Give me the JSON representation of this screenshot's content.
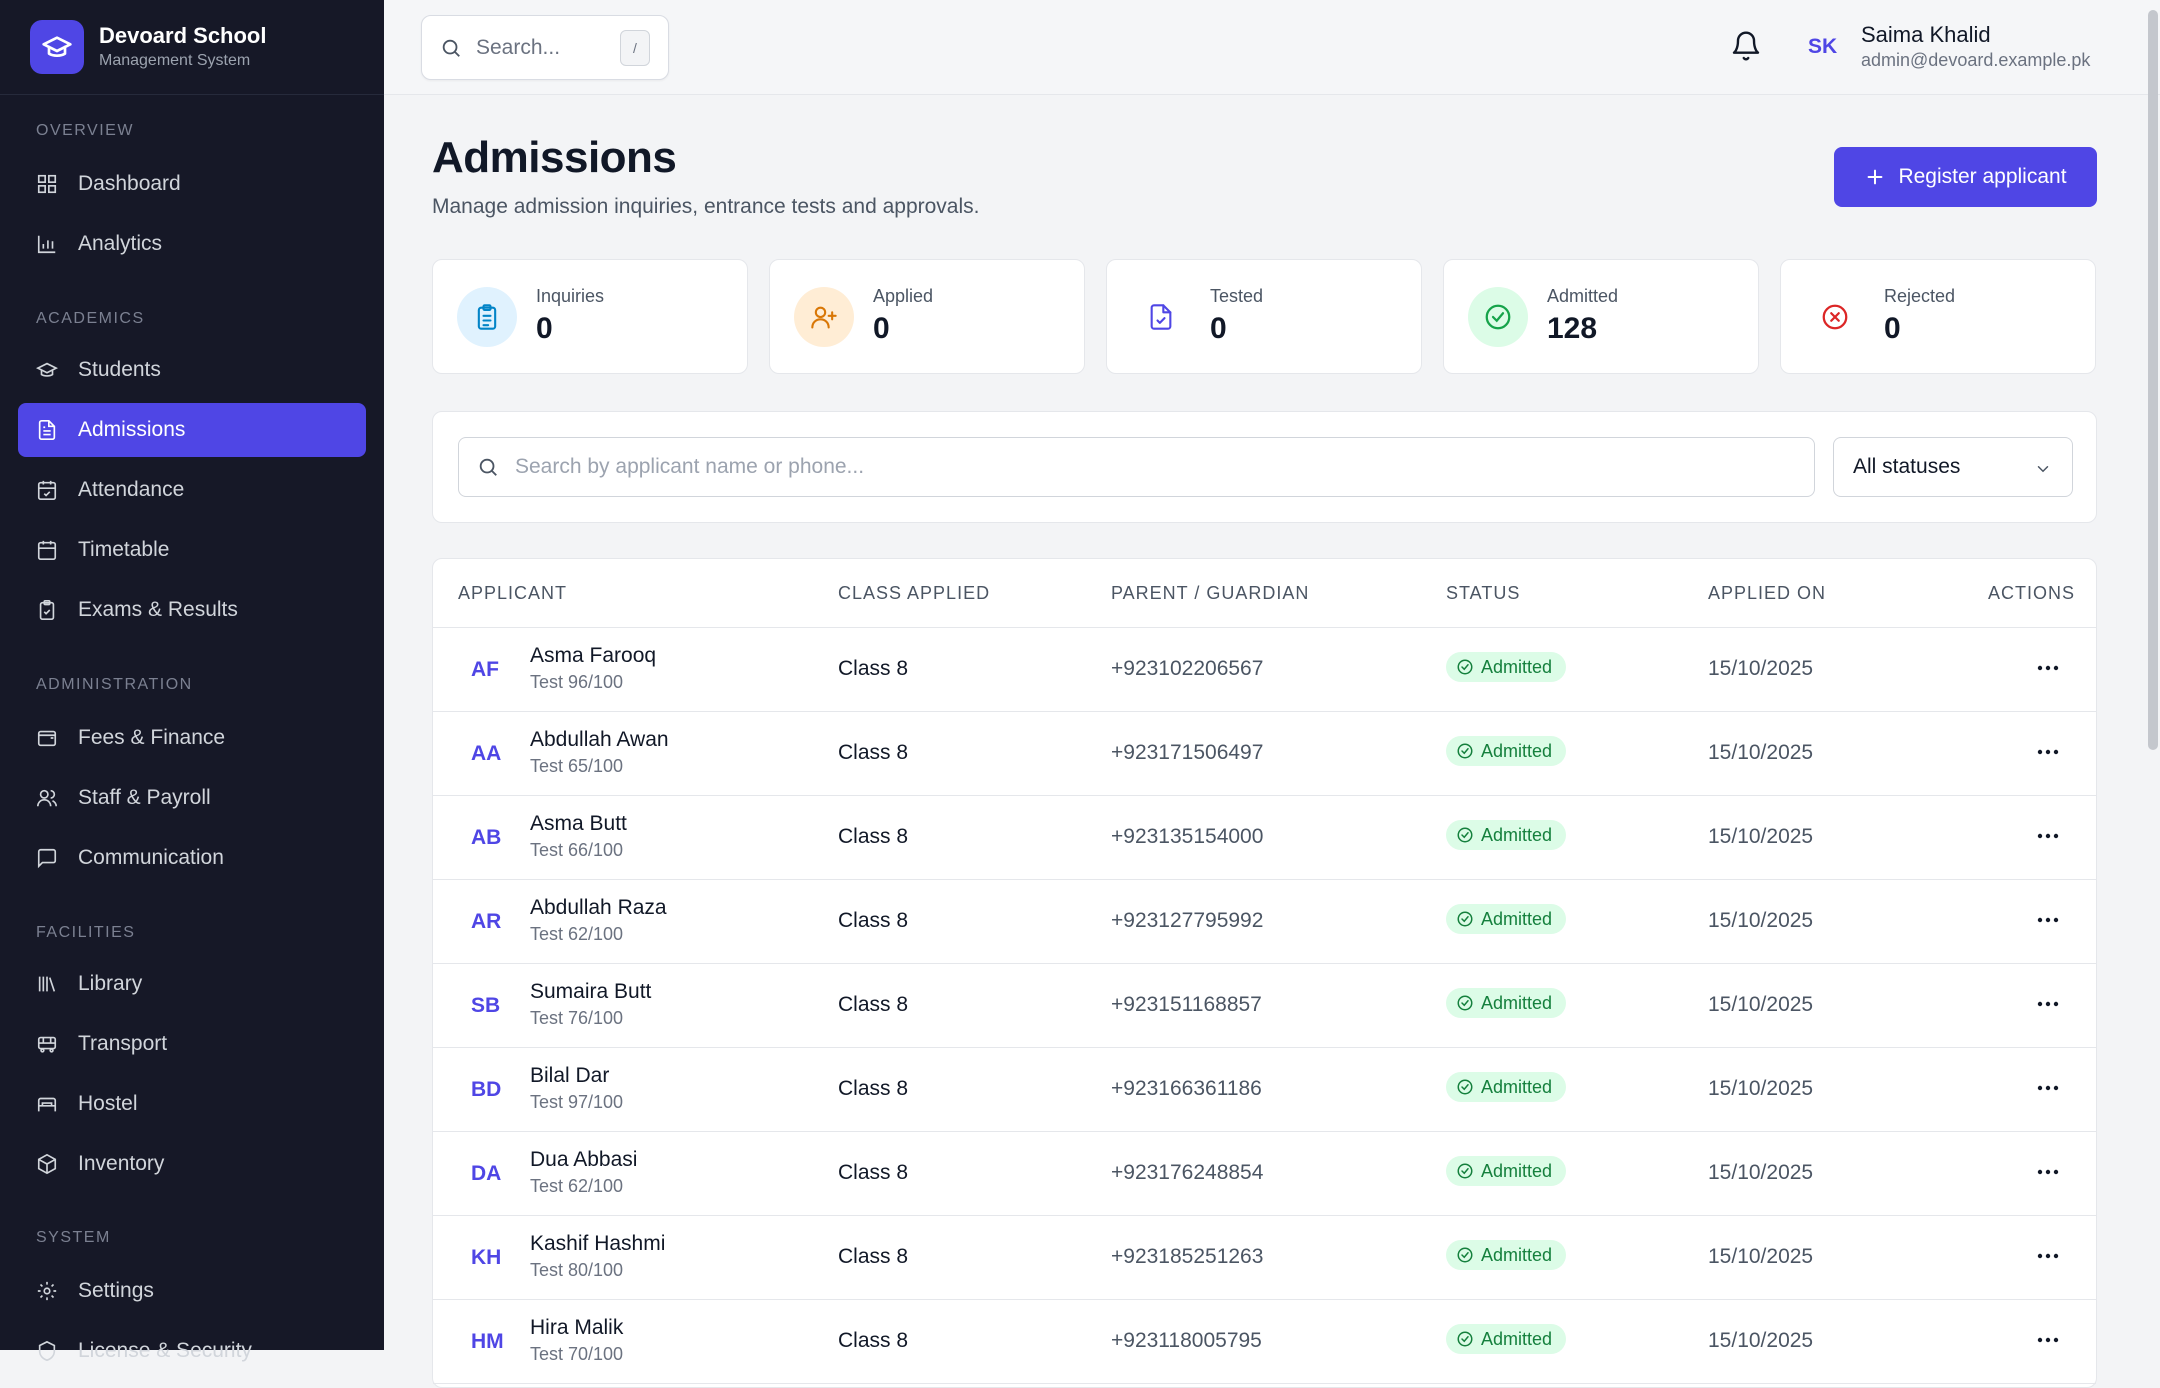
{
  "brand": {
    "name": "Devoard School",
    "subtitle": "Management System"
  },
  "sidebar": {
    "sections": {
      "overview": "OVERVIEW",
      "academics": "ACADEMICS",
      "administration": "ADMINISTRATION",
      "facilities": "FACILITIES",
      "system": "SYSTEM"
    },
    "items": {
      "dashboard": "Dashboard",
      "analytics": "Analytics",
      "students": "Students",
      "admissions": "Admissions",
      "attendance": "Attendance",
      "timetable": "Timetable",
      "exams": "Exams & Results",
      "fees": "Fees & Finance",
      "staff": "Staff & Payroll",
      "communication": "Communication",
      "library": "Library",
      "transport": "Transport",
      "hostel": "Hostel",
      "inventory": "Inventory",
      "settings": "Settings",
      "license": "License & Security"
    },
    "active": "admissions"
  },
  "topbar": {
    "search_placeholder": "Search...",
    "search_shortcut": "/",
    "user": {
      "initials": "SK",
      "name": "Saima Khalid",
      "email": "admin@devoard.example.pk"
    }
  },
  "page": {
    "title": "Admissions",
    "subtitle": "Manage admission inquiries, entrance tests and approvals.",
    "primary_button": "Register applicant"
  },
  "stats": [
    {
      "label": "Inquiries",
      "value": "0",
      "icon": "clipboard-icon",
      "color": "#0284c7",
      "bg": "#e0f2fe"
    },
    {
      "label": "Applied",
      "value": "0",
      "icon": "user-plus-icon",
      "color": "#d97706",
      "bg": "#ffedd5"
    },
    {
      "label": "Tested",
      "value": "0",
      "icon": "file-check-icon",
      "color": "#4f46e5",
      "bg": "#ffffff"
    },
    {
      "label": "Admitted",
      "value": "128",
      "icon": "check-circle-icon",
      "color": "#16a34a",
      "bg": "#dcfce7"
    },
    {
      "label": "Rejected",
      "value": "0",
      "icon": "x-circle-icon",
      "color": "#dc2626",
      "bg": "#ffffff"
    }
  ],
  "filters": {
    "search_placeholder": "Search by applicant name or phone...",
    "status_selected": "All statuses"
  },
  "table": {
    "columns": {
      "applicant": "APPLICANT",
      "class": "CLASS APPLIED",
      "parent": "PARENT / GUARDIAN",
      "status": "STATUS",
      "applied": "APPLIED ON",
      "actions": "ACTIONS"
    },
    "rows": [
      {
        "initials": "AF",
        "name": "Asma Farooq",
        "test": "Test 96/100",
        "class": "Class 8",
        "phone": "+923102206567",
        "status": "Admitted",
        "date": "15/10/2025"
      },
      {
        "initials": "AA",
        "name": "Abdullah Awan",
        "test": "Test 65/100",
        "class": "Class 8",
        "phone": "+923171506497",
        "status": "Admitted",
        "date": "15/10/2025"
      },
      {
        "initials": "AB",
        "name": "Asma Butt",
        "test": "Test 66/100",
        "class": "Class 8",
        "phone": "+923135154000",
        "status": "Admitted",
        "date": "15/10/2025"
      },
      {
        "initials": "AR",
        "name": "Abdullah Raza",
        "test": "Test 62/100",
        "class": "Class 8",
        "phone": "+923127795992",
        "status": "Admitted",
        "date": "15/10/2025"
      },
      {
        "initials": "SB",
        "name": "Sumaira Butt",
        "test": "Test 76/100",
        "class": "Class 8",
        "phone": "+923151168857",
        "status": "Admitted",
        "date": "15/10/2025"
      },
      {
        "initials": "BD",
        "name": "Bilal Dar",
        "test": "Test 97/100",
        "class": "Class 8",
        "phone": "+923166361186",
        "status": "Admitted",
        "date": "15/10/2025"
      },
      {
        "initials": "DA",
        "name": "Dua Abbasi",
        "test": "Test 62/100",
        "class": "Class 8",
        "phone": "+923176248854",
        "status": "Admitted",
        "date": "15/10/2025"
      },
      {
        "initials": "KH",
        "name": "Kashif Hashmi",
        "test": "Test 80/100",
        "class": "Class 8",
        "phone": "+923185251263",
        "status": "Admitted",
        "date": "15/10/2025"
      },
      {
        "initials": "HM",
        "name": "Hira Malik",
        "test": "Test 70/100",
        "class": "Class 8",
        "phone": "+923118005795",
        "status": "Admitted",
        "date": "15/10/2025"
      }
    ]
  },
  "colors": {
    "accent": "#4f46e5",
    "sidebar_bg": "#161827",
    "success": "#16a34a"
  }
}
